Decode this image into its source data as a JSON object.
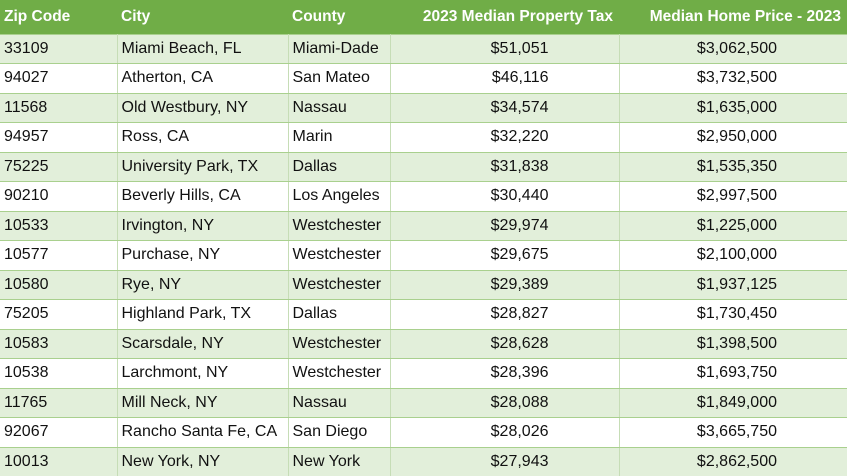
{
  "table": {
    "headers": {
      "zip": "Zip Code",
      "city": "City",
      "county": "County",
      "tax": "2023 Median Property Tax",
      "price": "Median Home Price - 2023"
    },
    "rows": [
      {
        "zip": "33109",
        "city": "Miami Beach, FL",
        "county": "Miami-Dade",
        "tax": "$51,051",
        "price": "$3,062,500"
      },
      {
        "zip": "94027",
        "city": "Atherton, CA",
        "county": "San Mateo",
        "tax": "$46,116",
        "price": "$3,732,500"
      },
      {
        "zip": "11568",
        "city": "Old Westbury, NY",
        "county": "Nassau",
        "tax": "$34,574",
        "price": "$1,635,000"
      },
      {
        "zip": "94957",
        "city": "Ross, CA",
        "county": "Marin",
        "tax": "$32,220",
        "price": "$2,950,000"
      },
      {
        "zip": "75225",
        "city": "University Park, TX",
        "county": "Dallas",
        "tax": "$31,838",
        "price": "$1,535,350"
      },
      {
        "zip": "90210",
        "city": "Beverly Hills, CA",
        "county": "Los Angeles",
        "tax": "$30,440",
        "price": "$2,997,500"
      },
      {
        "zip": "10533",
        "city": "Irvington, NY",
        "county": "Westchester",
        "tax": "$29,974",
        "price": "$1,225,000"
      },
      {
        "zip": "10577",
        "city": "Purchase, NY",
        "county": "Westchester",
        "tax": "$29,675",
        "price": "$2,100,000"
      },
      {
        "zip": "10580",
        "city": "Rye, NY",
        "county": "Westchester",
        "tax": "$29,389",
        "price": "$1,937,125"
      },
      {
        "zip": "75205",
        "city": "Highland Park, TX",
        "county": "Dallas",
        "tax": "$28,827",
        "price": "$1,730,450"
      },
      {
        "zip": "10583",
        "city": "Scarsdale, NY",
        "county": "Westchester",
        "tax": "$28,628",
        "price": "$1,398,500"
      },
      {
        "zip": "10538",
        "city": "Larchmont, NY",
        "county": "Westchester",
        "tax": "$28,396",
        "price": "$1,693,750"
      },
      {
        "zip": "11765",
        "city": "Mill Neck, NY",
        "county": "Nassau",
        "tax": "$28,088",
        "price": "$1,849,000"
      },
      {
        "zip": "92067",
        "city": "Rancho Santa Fe, CA",
        "county": "San Diego",
        "tax": "$28,026",
        "price": "$3,665,750"
      },
      {
        "zip": "10013",
        "city": "New York, NY",
        "county": "New York",
        "tax": "$27,943",
        "price": "$2,862,500"
      }
    ]
  }
}
